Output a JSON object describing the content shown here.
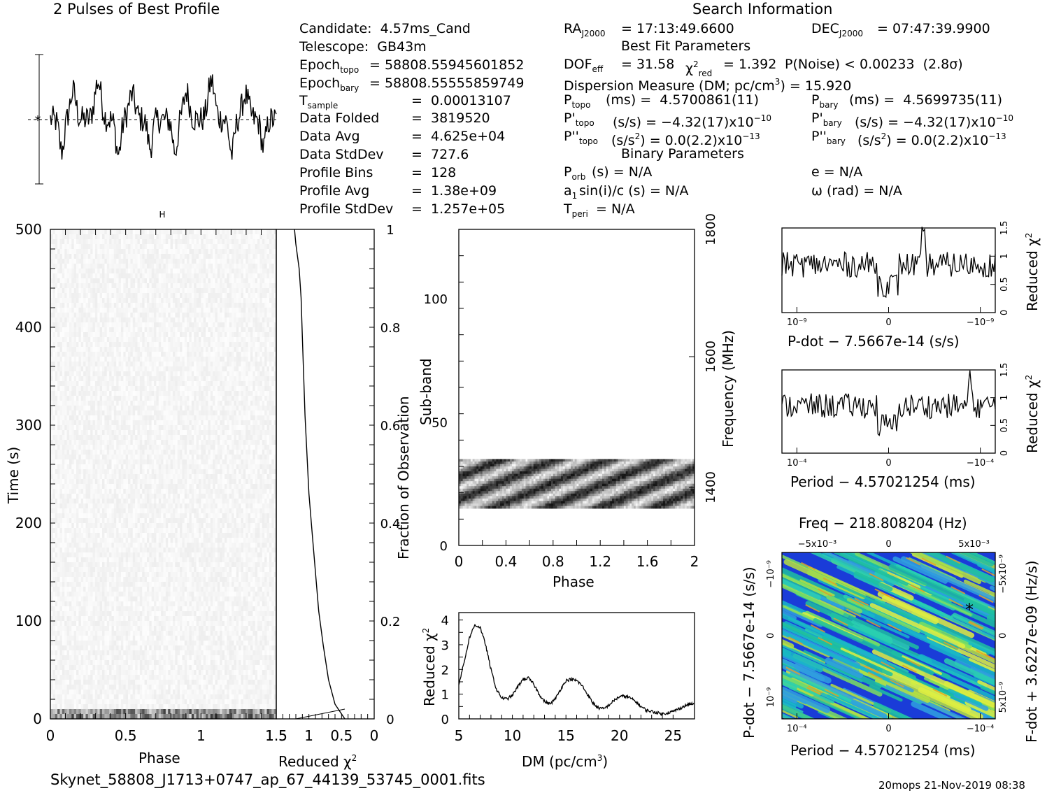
{
  "header": {
    "profile_title": "2 Pulses of Best Profile",
    "search_title": "Search Information",
    "best_fit_title": "Best Fit Parameters",
    "binary_title": "Binary Parameters"
  },
  "info_left": {
    "candidate": "Candidate:  4.57ms_Cand",
    "telescope": "Telescope:  GB43m",
    "epoch_topo": "= 58808.55945601852",
    "epoch_bary": "= 58808.55555859749",
    "t_sample": "=  0.00013107",
    "data_folded_label": "Data Folded",
    "data_folded": "=  3819520",
    "data_avg_label": "Data Avg",
    "data_avg": "=  4.625e+04",
    "data_std_label": "Data StdDev",
    "data_std": "=  727.6",
    "profile_bins_label": "Profile Bins",
    "profile_bins": "=  128",
    "profile_avg_label": "Profile Avg",
    "profile_avg": "=  1.38e+09",
    "profile_std_label": "Profile StdDev",
    "profile_std": "=  1.257e+05"
  },
  "info_mid": {
    "ra": "= 17:13:49.6600",
    "dof": "= 31.58",
    "chi2": "= 1.392",
    "pnoise": "P(Noise) < 0.00233  (2.8σ)",
    "dm_line": "Dispersion Measure (DM; pc/cm",
    "dm_value": ") = 15.920",
    "p_topo": "(ms) =  4.5700861(11)",
    "pd_topo": "(s/s) = −4.32(17)x10",
    "pd_topo_exp": "−10",
    "pdd_topo": "(s/s",
    "pdd_topo_rest": ") = 0.0(2.2)x10",
    "pdd_topo_exp": "−13",
    "p_orb": "(s) = N/A",
    "a1sini": "sin(i)/c (s) = N/A",
    "t_peri": "= N/A"
  },
  "info_right": {
    "dec": "= 07:47:39.9900",
    "p_bary": "(ms) =  4.5699735(11)",
    "pd_bary": "(s/s) = −4.32(17)x10",
    "pd_bary_exp": "−10",
    "pdd_bary": "(s/s",
    "pdd_bary_rest": ") = 0.0(2.2)x10",
    "pdd_bary_exp": "−13",
    "e": "e = N/A",
    "omega": "ω (rad) = N/A"
  },
  "footer": {
    "filename": "Skynet_58808_J1713+0747_ap_67_44139_53745_0001.fits",
    "stamp": "20mops 21-Nov-2019 08:38"
  },
  "chart_data": [
    {
      "id": "profile",
      "type": "line",
      "title": "2 Pulses of Best Profile",
      "xlim": [
        0,
        2
      ],
      "note": "two cycles of folded pulse profile"
    },
    {
      "id": "time-phase",
      "type": "heatmap",
      "xlabel": "Phase",
      "ylabel": "Time (s)",
      "xlim": [
        0,
        1.5
      ],
      "ylim": [
        0,
        500
      ],
      "xticks": [
        "0",
        "0.5",
        "1",
        "1.5"
      ],
      "yticks": [
        "0",
        "100",
        "200",
        "300",
        "400",
        "500"
      ]
    },
    {
      "id": "chi2-vs-time",
      "type": "line",
      "xlabel": "Reduced χ",
      "ylabel": "Fraction of Observation",
      "xlim": [
        1.5,
        0
      ],
      "ylim": [
        0,
        1
      ],
      "xticks": [
        "1.5",
        "1",
        "0.5",
        "0"
      ],
      "yticks": [
        "0",
        "0.2",
        "0.4",
        "0.6",
        "0.8",
        "1"
      ],
      "x": [
        0.45,
        0.6,
        0.7,
        0.78,
        0.85,
        0.9,
        0.95,
        1.0,
        1.03,
        1.06,
        1.08,
        1.1,
        1.12,
        1.15,
        1.2,
        1.22
      ],
      "y": [
        0.0,
        0.03,
        0.08,
        0.15,
        0.22,
        0.3,
        0.38,
        0.46,
        0.54,
        0.62,
        0.7,
        0.78,
        0.86,
        0.92,
        0.97,
        1.0
      ]
    },
    {
      "id": "subband-phase",
      "type": "heatmap",
      "xlabel": "Phase",
      "ylabel": "Sub-band",
      "y2label": "Frequency (MHz)",
      "xlim": [
        0,
        2
      ],
      "ylim": [
        0,
        128
      ],
      "xticks": [
        "0",
        "0.4",
        "0.8",
        "1.2",
        "1.6",
        "2"
      ],
      "yticks": [
        "0",
        "50",
        "100"
      ],
      "y2ticks": [
        "1400",
        "1600",
        "1800"
      ],
      "band_rows": [
        15,
        35
      ]
    },
    {
      "id": "chi2-vs-dm",
      "type": "line",
      "xlabel": "DM (pc/cm",
      "ylabel": "Reduced χ",
      "xlim": [
        5,
        27
      ],
      "ylim": [
        0,
        4.3
      ],
      "xticks": [
        "5",
        "10",
        "15",
        "20",
        "25"
      ],
      "yticks": [
        "0",
        "1",
        "2",
        "3",
        "4"
      ],
      "x": [
        5,
        5.5,
        6,
        6.5,
        7,
        7.5,
        8,
        8.5,
        9,
        9.5,
        10,
        10.5,
        11,
        11.5,
        12,
        12.5,
        13,
        13.5,
        14,
        14.5,
        15,
        15.5,
        16,
        16.5,
        17,
        17.5,
        18,
        18.5,
        19,
        19.5,
        20,
        20.5,
        21,
        21.5,
        22,
        22.5,
        23,
        23.5,
        24,
        24.5,
        25,
        25.5,
        26,
        26.5,
        27
      ],
      "y": [
        1.4,
        2.3,
        3.3,
        3.8,
        3.7,
        3.0,
        2.0,
        1.2,
        0.85,
        0.8,
        0.95,
        1.3,
        1.6,
        1.65,
        1.4,
        1.0,
        0.7,
        0.6,
        0.8,
        1.2,
        1.55,
        1.6,
        1.55,
        1.35,
        1.0,
        0.65,
        0.45,
        0.4,
        0.55,
        0.75,
        0.9,
        0.92,
        0.85,
        0.7,
        0.5,
        0.35,
        0.3,
        0.25,
        0.2,
        0.25,
        0.3,
        0.4,
        0.5,
        0.6,
        0.6
      ]
    },
    {
      "id": "chi2-vs-pdot",
      "type": "line",
      "xlabel": "P-dot − 7.5667e-14 (s/s)",
      "ylabel": "Reduced χ",
      "ylim": [
        0,
        1.5
      ],
      "xticks": [
        "10⁻⁹",
        "0",
        "−10⁻⁹"
      ],
      "yticks": [
        "0",
        "0.5",
        "1",
        "1.5"
      ]
    },
    {
      "id": "chi2-vs-period",
      "type": "line",
      "xlabel": "Period − 4.57021254 (ms)",
      "ylabel": "Reduced χ",
      "ylim": [
        0,
        1.5
      ],
      "xticks": [
        "10⁻⁴",
        "0",
        "−10⁻⁴"
      ],
      "yticks": [
        "0",
        "0.5",
        "1",
        "1.5"
      ]
    },
    {
      "id": "p-pdot-plane",
      "type": "heatmap",
      "title": "Freq − 218.808204 (Hz)",
      "xlabel": "Period − 4.57021254 (ms)",
      "ylabel": "P-dot − 7.5667e-14 (s/s)",
      "y2label": "F-dot + 3.6227e-09 (Hz/s)",
      "xticks": [
        "10⁻⁴",
        "0",
        "−10⁻⁴"
      ],
      "x2ticks": [
        "−5x10⁻³",
        "0",
        "5x10⁻³"
      ],
      "yticks": [
        "10⁻⁹",
        "0",
        "−10⁻⁹"
      ],
      "y2ticks": [
        "−5x10⁻⁹",
        "0",
        "5x10⁻⁹"
      ]
    }
  ]
}
